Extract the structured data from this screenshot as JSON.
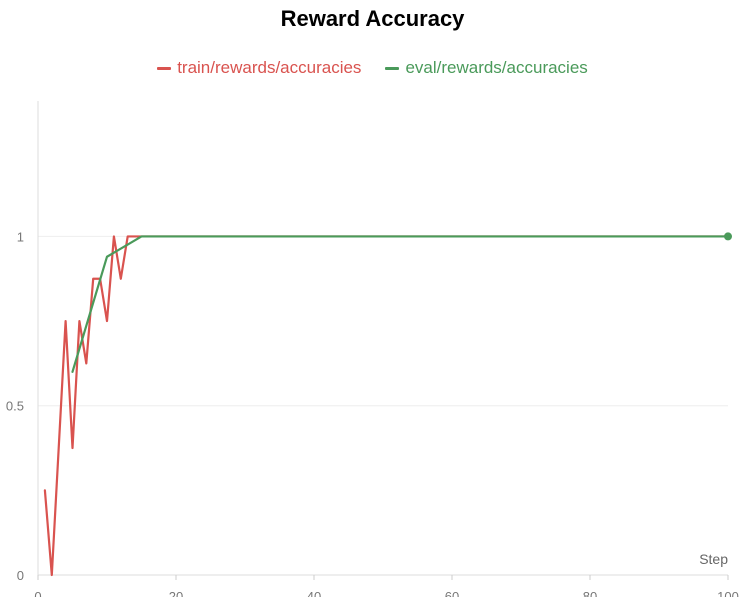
{
  "chart_data": {
    "type": "line",
    "title": "Reward Accuracy",
    "xlabel": "Step",
    "ylabel": "",
    "xlim": [
      0,
      100
    ],
    "ylim": [
      0,
      1.4
    ],
    "x_ticks": [
      0,
      20,
      40,
      60,
      80,
      100
    ],
    "y_ticks": [
      0,
      0.5,
      1
    ],
    "grid": true,
    "legend_position": "top-center",
    "series": [
      {
        "name": "train/rewards/accuracies",
        "color": "#d9534f",
        "x": [
          1,
          2,
          3,
          4,
          5,
          6,
          7,
          8,
          9,
          10,
          11,
          12,
          13,
          14,
          15,
          100
        ],
        "y": [
          0.25,
          0,
          0.375,
          0.75,
          0.375,
          0.75,
          0.625,
          0.875,
          0.875,
          0.75,
          1.0,
          0.875,
          1.0,
          1.0,
          1.0,
          1.0
        ]
      },
      {
        "name": "eval/rewards/accuracies",
        "color": "#4a9a5a",
        "x": [
          5,
          10,
          15,
          100
        ],
        "y": [
          0.6,
          0.94,
          1.0,
          1.0
        ]
      }
    ]
  }
}
